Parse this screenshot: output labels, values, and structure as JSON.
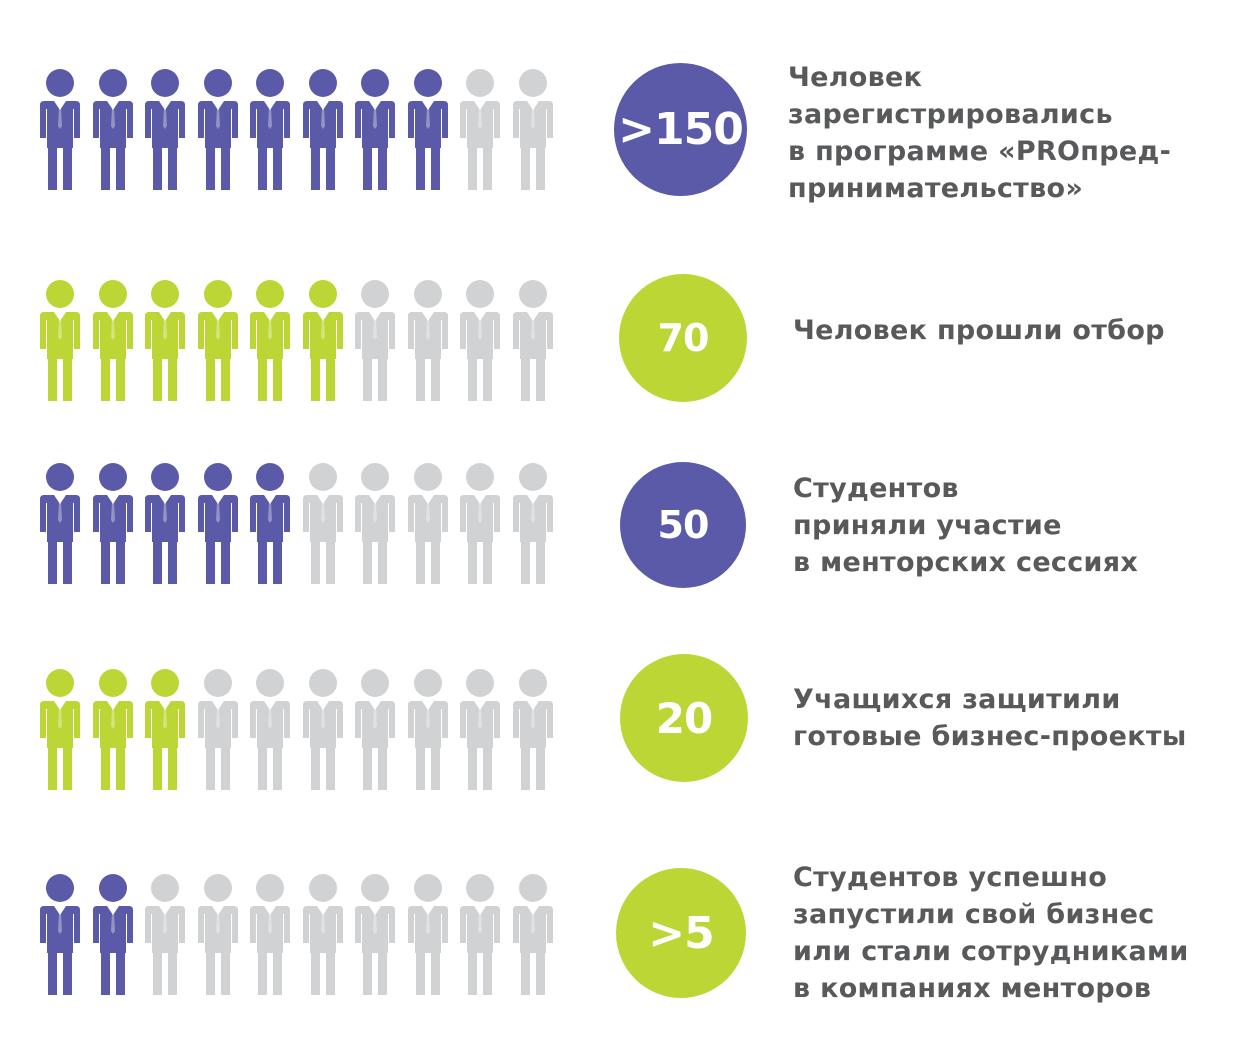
{
  "colors": {
    "purple": "#5b5aa8",
    "green": "#bcd636",
    "gray": "#d1d2d4",
    "text": "#58595b"
  },
  "icon": "person-icon",
  "rows": [
    {
      "stat": ">150",
      "filled": 8,
      "total": 10,
      "color": "purple",
      "lines": [
        "Человек",
        "зарегистрировались",
        "в программе «PROпред-",
        "принимательство»"
      ]
    },
    {
      "stat": "70",
      "filled": 6,
      "total": 10,
      "color": "green",
      "lines": [
        "Человек прошли отбор"
      ]
    },
    {
      "stat": "50",
      "filled": 5,
      "total": 10,
      "color": "purple",
      "lines": [
        "Студентов",
        "приняли участие",
        "в менторских сессиях"
      ]
    },
    {
      "stat": "20",
      "filled": 3,
      "total": 10,
      "color": "green",
      "lines": [
        "Учащихся защитили",
        "готовые бизнес-проекты"
      ]
    },
    {
      "stat": ">5",
      "filled": 2,
      "total": 10,
      "color": "purple",
      "badge_color": "green",
      "lines": [
        "Студентов успешно",
        "запустили свой бизнес",
        "или стали сотрудниками",
        "в компаниях менторов"
      ]
    }
  ]
}
